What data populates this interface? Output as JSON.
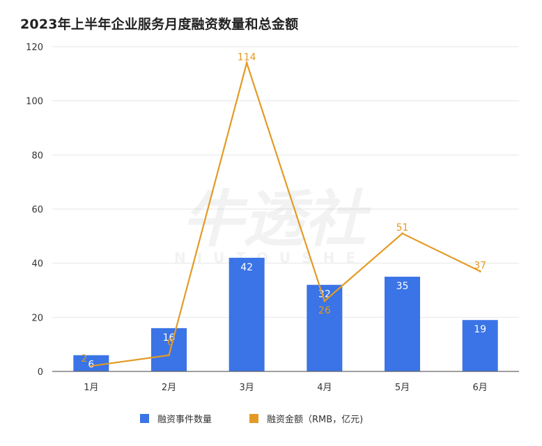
{
  "title": "2023年上半年企业服务月度融资数量和总金额",
  "watermark": {
    "text_cn": "牛透社",
    "text_en": "NIUTOUSHE"
  },
  "colors": {
    "bar": "#3a74e6",
    "line": "#e39a24",
    "grid": "#e6e6e6",
    "axis": "#666666"
  },
  "chart_data": {
    "type": "bar",
    "categories": [
      "1月",
      "2月",
      "3月",
      "4月",
      "5月",
      "6月"
    ],
    "series": [
      {
        "name": "融资事件数量",
        "type": "bar",
        "values": [
          6,
          16,
          42,
          32,
          35,
          19
        ]
      },
      {
        "name": "融资金额（RMB，亿元)",
        "type": "line",
        "values": [
          2,
          6,
          114,
          26,
          51,
          37
        ]
      }
    ],
    "title": "2023年上半年企业服务月度融资数量和总金额",
    "xlabel": "",
    "ylabel": "",
    "ylim": [
      0,
      120
    ],
    "yticks": [
      0,
      20,
      40,
      60,
      80,
      100,
      120
    ],
    "grid": true,
    "legend": "bottom"
  }
}
